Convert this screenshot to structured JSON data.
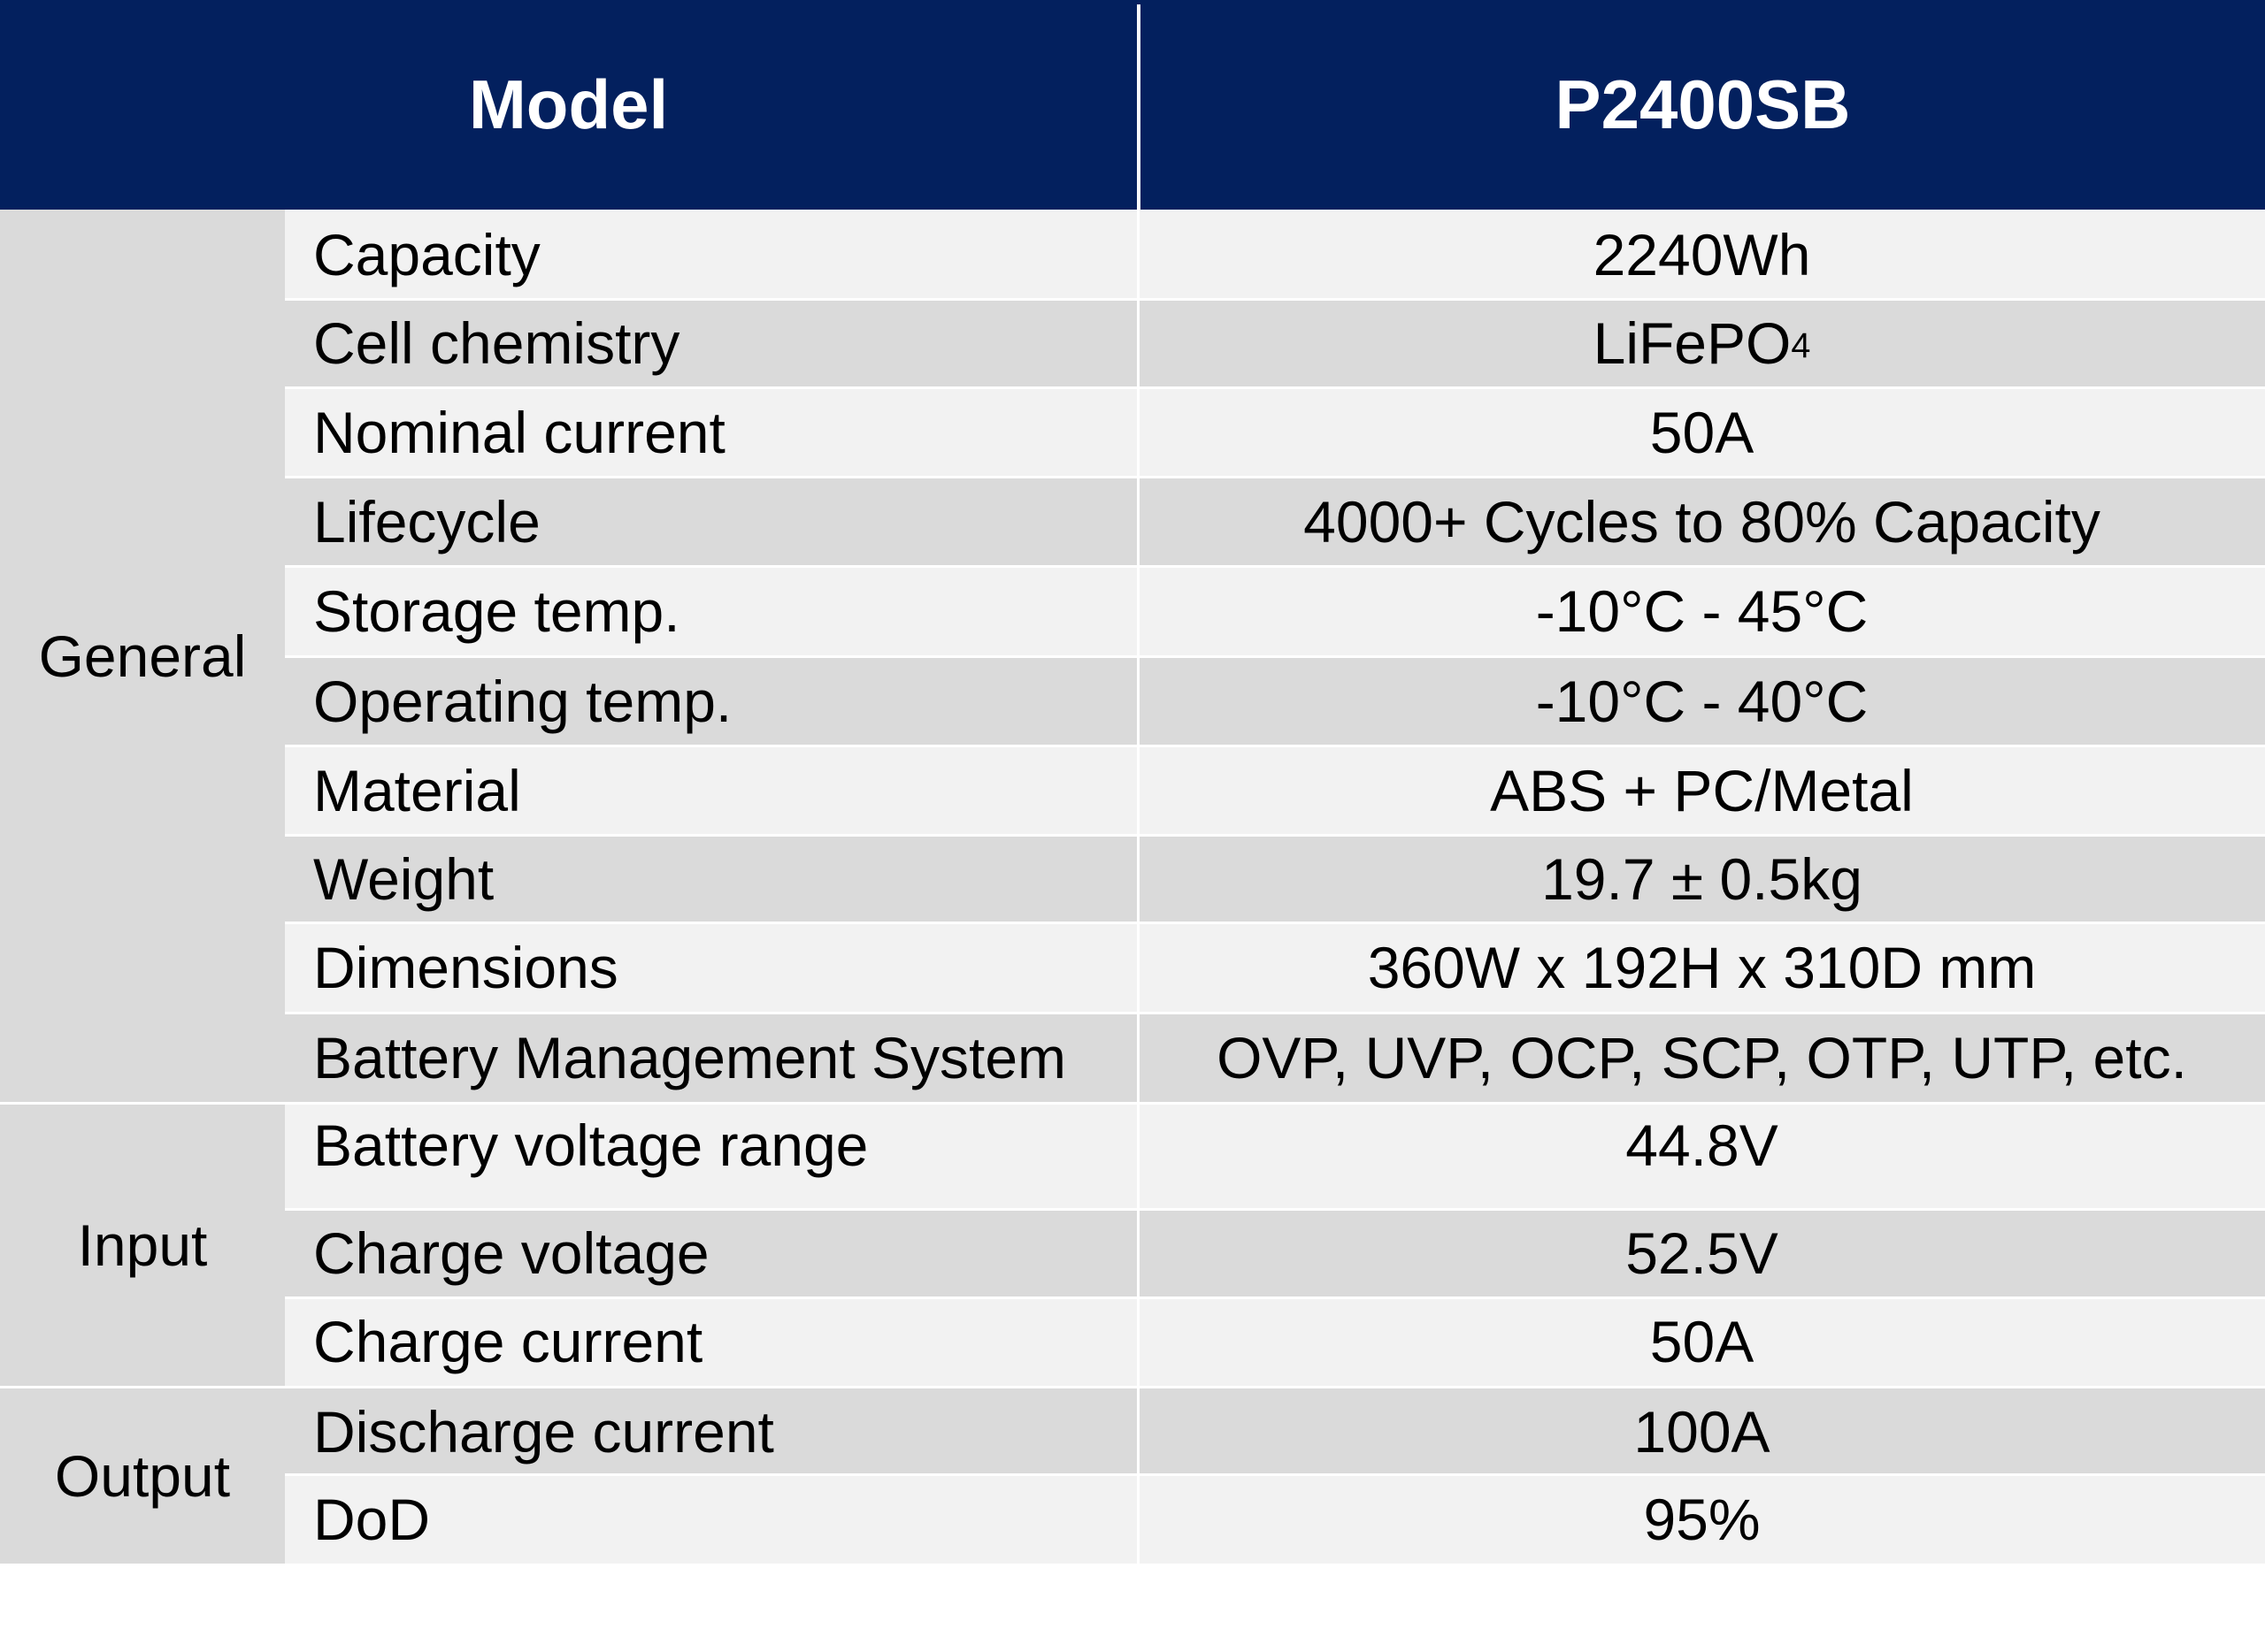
{
  "header": {
    "col1": "Model",
    "col2": "P2400SB"
  },
  "groups": {
    "general": "General",
    "input": "Input",
    "output": "Output"
  },
  "rows": [
    {
      "label": "Capacity",
      "value": "2240Wh"
    },
    {
      "label": "Cell chemistry",
      "value": "LiFePO",
      "value_sub": "4"
    },
    {
      "label": "Nominal current",
      "value": "50A"
    },
    {
      "label": "Lifecycle",
      "value": "4000+ Cycles to 80% Capacity"
    },
    {
      "label": "Storage temp.",
      "value": "-10°C - 45°C"
    },
    {
      "label": "Operating temp.",
      "value": "-10°C - 40°C"
    },
    {
      "label": "Material",
      "value": "ABS + PC/Metal"
    },
    {
      "label": "Weight",
      "value": "19.7 ± 0.5kg"
    },
    {
      "label": "Dimensions",
      "value": "360W x 192H x 310D mm"
    },
    {
      "label": "Battery Management System",
      "value": "OVP, UVP, OCP, SCP, OTP, UTP, etc."
    },
    {
      "label": "Battery voltage range",
      "value": "44.8V"
    },
    {
      "label": "Charge voltage",
      "value": "52.5V"
    },
    {
      "label": "Charge current",
      "value": "50A"
    },
    {
      "label": "Discharge current",
      "value": "100A"
    },
    {
      "label": "DoD",
      "value": "95%"
    }
  ],
  "colors": {
    "header_bg": "#03205e",
    "row_light": "#f2f2f2",
    "row_dark": "#dadada"
  }
}
